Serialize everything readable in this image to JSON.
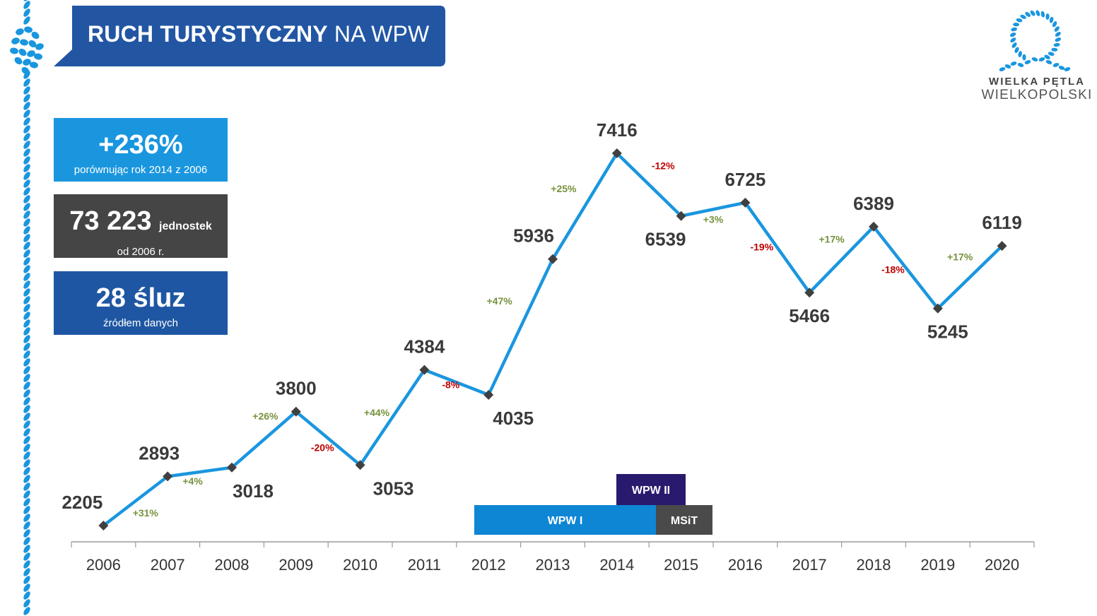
{
  "header": {
    "title_bold": "RUCH TURYSTYCZNY",
    "title_light": "NA WPW"
  },
  "logo": {
    "line1": "WIELKA PĘTLA",
    "line2": "WIELKOPOLSKI"
  },
  "stats": [
    {
      "big": "+236%",
      "small": "",
      "sub": "porównując rok 2014  z 2006"
    },
    {
      "big": "73 223",
      "small": "jednostek",
      "sub": "od 2006 r."
    },
    {
      "big": "28 śluz",
      "small": "",
      "sub": "źródłem danych"
    }
  ],
  "colors": {
    "title_bg": "#2256a3",
    "line": "#1a96df",
    "marker": "#404040",
    "positive": "#76923c",
    "negative": "#c00000",
    "wpw1": "#0e86d4",
    "wpw2": "#2a1a6e",
    "msit": "#4a4a4a"
  },
  "chart_data": {
    "type": "line",
    "title": "RUCH TURYSTYCZNY NA WPW",
    "xlabel": "",
    "ylabel": "",
    "categories": [
      "2006",
      "2007",
      "2008",
      "2009",
      "2010",
      "2011",
      "2012",
      "2013",
      "2014",
      "2015",
      "2016",
      "2017",
      "2018",
      "2019",
      "2020"
    ],
    "series": [
      {
        "name": "Ruch turystyczny",
        "values": [
          2205,
          2893,
          3018,
          3800,
          3053,
          4384,
          4035,
          5936,
          7416,
          6539,
          6725,
          5466,
          6389,
          5245,
          6119
        ]
      }
    ],
    "value_labels": [
      "2205",
      "2893",
      "3018",
      "3800",
      "3053",
      "4384",
      "4035",
      "5936",
      "7416",
      "6539",
      "6725",
      "5466",
      "6389",
      "5245",
      "6119"
    ],
    "label_position": [
      "above",
      "above",
      "below",
      "above",
      "below",
      "above",
      "below",
      "above",
      "above",
      "below",
      "above",
      "below",
      "above",
      "below",
      "above"
    ],
    "changes": [
      "+31%",
      "+4%",
      "+26%",
      "-20%",
      "+44%",
      "-8%",
      "+47%",
      "+25%",
      "-12%",
      "+3%",
      "-19%",
      "+17%",
      "-18%",
      "+17%"
    ],
    "grid": false,
    "legend": "none",
    "periods": [
      {
        "label": "WPW I",
        "start": "2012",
        "end": "2015"
      },
      {
        "label": "WPW II",
        "start": "2014",
        "end": "2015"
      },
      {
        "label": "MSiT",
        "start": "2015",
        "end": "2016"
      }
    ]
  }
}
